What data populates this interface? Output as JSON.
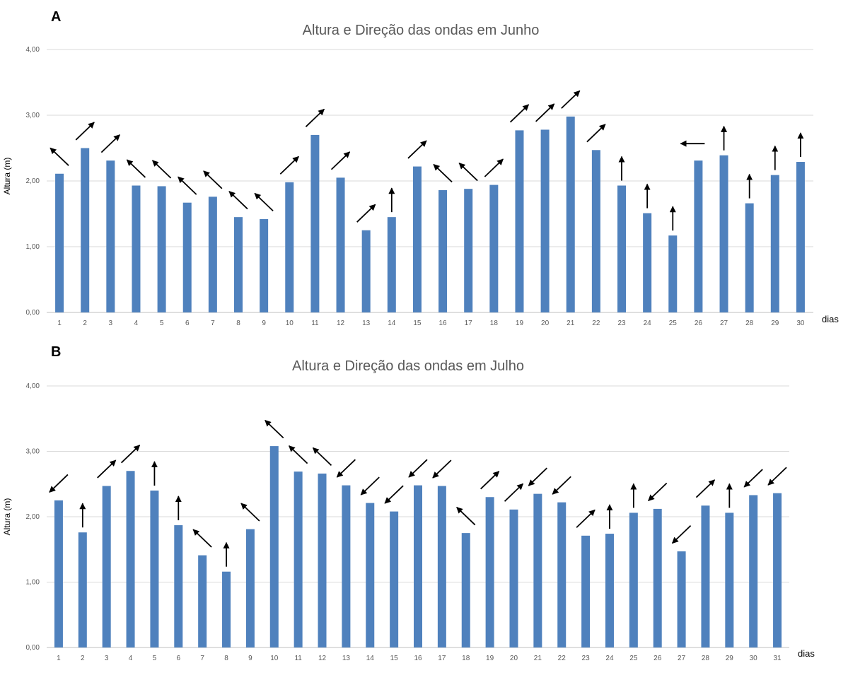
{
  "chart_data": [
    {
      "type": "bar",
      "panel_label": "A",
      "title": "Altura e Direção das ondas em Junho",
      "ylabel": "Altura (m)",
      "xlabel": "dias",
      "ylim": [
        0,
        4
      ],
      "yticks": [
        "0,00",
        "1,00",
        "2,00",
        "3,00",
        "4,00"
      ],
      "grid": true,
      "categories": [
        "1",
        "2",
        "3",
        "4",
        "5",
        "6",
        "7",
        "8",
        "9",
        "10",
        "11",
        "12",
        "13",
        "14",
        "15",
        "16",
        "17",
        "18",
        "19",
        "20",
        "21",
        "22",
        "23",
        "24",
        "25",
        "26",
        "27",
        "28",
        "29",
        "30"
      ],
      "values": [
        2.11,
        2.5,
        2.31,
        1.93,
        1.92,
        1.67,
        1.76,
        1.45,
        1.42,
        1.98,
        2.7,
        2.05,
        1.25,
        1.45,
        2.22,
        1.86,
        1.88,
        1.94,
        2.77,
        2.78,
        2.98,
        2.47,
        1.93,
        1.51,
        1.17,
        2.31,
        2.39,
        1.66,
        2.09,
        2.29
      ],
      "wave_direction_arrows": [
        "NW",
        "NE",
        "NE",
        "NW",
        "NW",
        "NW",
        "NW",
        "NW",
        "NW",
        "NE",
        "NE",
        "NE",
        "NE",
        "N",
        "NE",
        "NW",
        "NW",
        "NE",
        "NE",
        "NE",
        "NE",
        "NE",
        "N",
        "N",
        "N",
        "W",
        "N",
        "N",
        "N",
        "N"
      ]
    },
    {
      "type": "bar",
      "panel_label": "B",
      "title": "Altura e Direção das ondas em Julho",
      "ylabel": "Altura (m)",
      "xlabel": "dias",
      "ylim": [
        0,
        4
      ],
      "yticks": [
        "0,00",
        "1,00",
        "2,00",
        "3,00",
        "4,00"
      ],
      "grid": true,
      "categories": [
        "1",
        "2",
        "3",
        "4",
        "5",
        "6",
        "7",
        "8",
        "9",
        "10",
        "11",
        "12",
        "13",
        "14",
        "15",
        "16",
        "17",
        "18",
        "19",
        "20",
        "21",
        "22",
        "23",
        "24",
        "25",
        "26",
        "27",
        "28",
        "29",
        "30",
        "31"
      ],
      "values": [
        2.25,
        1.76,
        2.47,
        2.7,
        2.4,
        1.87,
        1.41,
        1.16,
        1.81,
        3.08,
        2.69,
        2.66,
        2.48,
        2.21,
        2.08,
        2.48,
        2.47,
        1.75,
        2.3,
        2.11,
        2.35,
        2.22,
        1.71,
        1.74,
        2.06,
        2.12,
        1.47,
        2.17,
        2.06,
        2.33,
        2.36
      ],
      "wave_direction_arrows": [
        "SW",
        "N",
        "NE",
        "NE",
        "N",
        "N",
        "NW",
        "N",
        "NW",
        "NW",
        "NW",
        "NW",
        "SW",
        "SW",
        "SW",
        "SW",
        "SW",
        "NW",
        "NE",
        "NE",
        "SW",
        "SW",
        "NE",
        "N",
        "N",
        "SW",
        "SW",
        "NE",
        "N",
        "SW",
        "SW"
      ]
    }
  ]
}
